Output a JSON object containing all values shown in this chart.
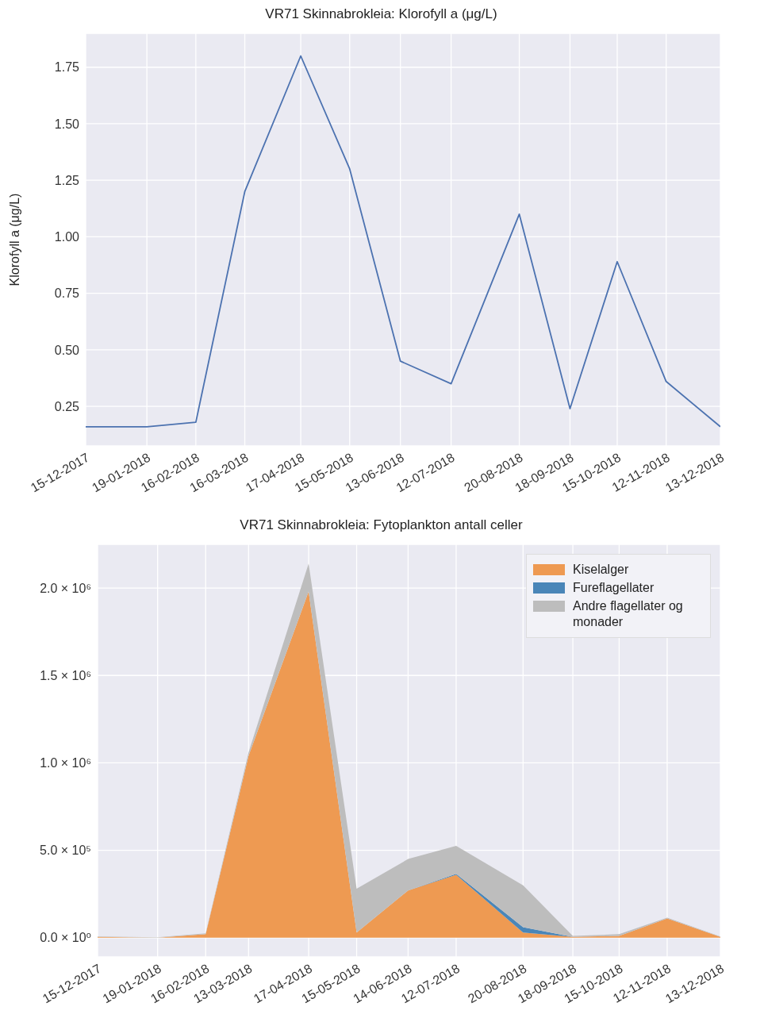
{
  "chart_data": [
    {
      "type": "line",
      "title": "VR71 Skinnabrokleia: Klorofyll a (μg/L)",
      "ylabel": "Klorofyll a (μg/L)",
      "x": [
        "2017-12-15",
        "2018-01-19",
        "2018-02-16",
        "2018-03-16",
        "2018-04-17",
        "2018-05-15",
        "2018-06-13",
        "2018-07-12",
        "2018-08-20",
        "2018-09-18",
        "2018-10-15",
        "2018-11-12",
        "2018-12-13"
      ],
      "series": [
        {
          "color": "#4c72b0",
          "values": [
            0.16,
            0.16,
            0.18,
            1.2,
            1.8,
            1.3,
            0.45,
            0.35,
            1.1,
            0.24,
            0.89,
            0.36,
            0.16
          ]
        }
      ],
      "xlim": [
        "2017-12-15",
        "2018-12-13"
      ],
      "xticks": [
        {
          "value": "2017-12-15",
          "label": "15-12-2017"
        },
        {
          "value": "2018-01-19",
          "label": "19-01-2018"
        },
        {
          "value": "2018-02-16",
          "label": "16-02-2018"
        },
        {
          "value": "2018-03-16",
          "label": "16-03-2018"
        },
        {
          "value": "2018-04-17",
          "label": "17-04-2018"
        },
        {
          "value": "2018-05-15",
          "label": "15-05-2018"
        },
        {
          "value": "2018-06-13",
          "label": "13-06-2018"
        },
        {
          "value": "2018-07-12",
          "label": "12-07-2018"
        },
        {
          "value": "2018-08-20",
          "label": "20-08-2018"
        },
        {
          "value": "2018-09-18",
          "label": "18-09-2018"
        },
        {
          "value": "2018-10-15",
          "label": "15-10-2018"
        },
        {
          "value": "2018-11-12",
          "label": "12-11-2018"
        },
        {
          "value": "2018-12-13",
          "label": "13-12-2018"
        }
      ],
      "ylim": [
        0.075,
        1.9
      ],
      "yticks": [
        0.25,
        {
          "value": 0.5,
          "label": "0.50"
        },
        0.75,
        {
          "value": 1,
          "label": "1.00"
        },
        1.25,
        {
          "value": 1.5,
          "label": "1.50"
        },
        1.75
      ],
      "grid": true,
      "marker": "none",
      "line_style": "solid"
    },
    {
      "type": "area",
      "stacked": true,
      "title": "VR71 Skinnabrokleia: Fytoplankton antall celler",
      "x": [
        "2017-12-15",
        "2018-01-19",
        "2018-02-16",
        "2018-03-13",
        "2018-04-17",
        "2018-05-15",
        "2018-06-14",
        "2018-07-12",
        "2018-08-20",
        "2018-09-18",
        "2018-10-15",
        "2018-11-12",
        "2018-12-13"
      ],
      "series": [
        {
          "name": "Kiselalger",
          "color": "#ee9a52",
          "values": [
            5000,
            0,
            20000,
            1040000,
            1980000,
            30000,
            270000,
            360000,
            30000,
            5000,
            10000,
            110000,
            5000
          ]
        },
        {
          "name": "Fureflagellater",
          "color": "#4a86b8",
          "values": [
            null,
            null,
            null,
            null,
            null,
            null,
            0,
            5000,
            30000,
            0,
            null,
            null,
            null
          ]
        },
        {
          "name": "Andre flagellater og monader",
          "color": "#bdbdbd",
          "values": [
            2000,
            2000,
            5000,
            20000,
            160000,
            250000,
            180000,
            160000,
            240000,
            5000,
            10000,
            5000,
            2000
          ]
        }
      ],
      "xlim": [
        "2017-12-15",
        "2018-12-13"
      ],
      "xticks": [
        {
          "value": "2017-12-15",
          "label": "15-12-2017"
        },
        {
          "value": "2018-01-19",
          "label": "19-01-2018"
        },
        {
          "value": "2018-02-16",
          "label": "16-02-2018"
        },
        {
          "value": "2018-03-13",
          "label": "13-03-2018"
        },
        {
          "value": "2018-04-17",
          "label": "17-04-2018"
        },
        {
          "value": "2018-05-15",
          "label": "15-05-2018"
        },
        {
          "value": "2018-06-14",
          "label": "14-06-2018"
        },
        {
          "value": "2018-07-12",
          "label": "12-07-2018"
        },
        {
          "value": "2018-08-20",
          "label": "20-08-2018"
        },
        {
          "value": "2018-09-18",
          "label": "18-09-2018"
        },
        {
          "value": "2018-10-15",
          "label": "15-10-2018"
        },
        {
          "value": "2018-11-12",
          "label": "12-11-2018"
        },
        {
          "value": "2018-12-13",
          "label": "13-12-2018"
        }
      ],
      "ylim": [
        -110000,
        2250000
      ],
      "yticks": [
        {
          "value": 0,
          "label": "0.0 × 10⁰"
        },
        {
          "value": 500000,
          "label": "5.0 × 10⁵"
        },
        {
          "value": 1000000,
          "label": "1.0 × 10⁶"
        },
        {
          "value": 1500000,
          "label": "1.5 × 10⁶"
        },
        {
          "value": 2000000,
          "label": "2.0 × 10⁶"
        }
      ],
      "grid": true,
      "legend": "top right"
    }
  ]
}
